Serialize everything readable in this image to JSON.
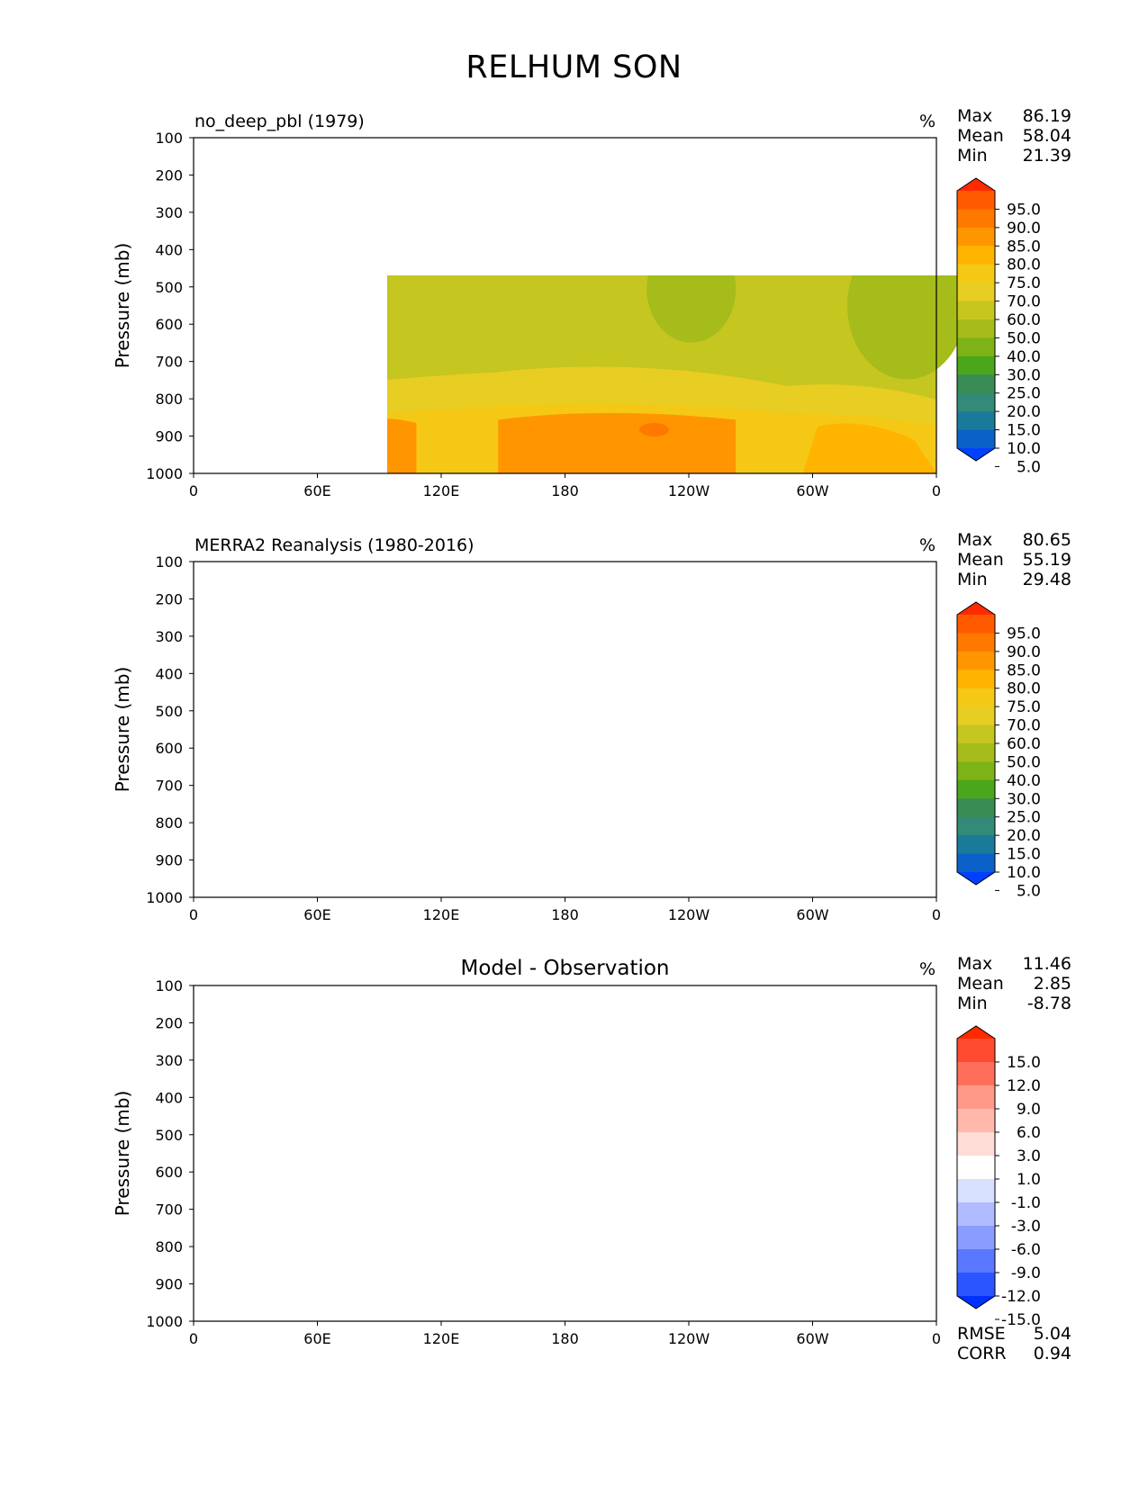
{
  "figure_title": "RELHUM SON",
  "chart_data": [
    {
      "type": "heatmap",
      "title": "no_deep_pbl (1979)",
      "units": "%",
      "xlabel": "",
      "ylabel": "Pressure (mb)",
      "xticks": [
        "0",
        "60E",
        "120E",
        "180",
        "120W",
        "60W",
        "0"
      ],
      "yticks": [
        "100",
        "200",
        "300",
        "400",
        "500",
        "600",
        "700",
        "800",
        "900",
        "1000"
      ],
      "ylim": [
        100,
        1000
      ],
      "xlim": [
        0,
        360
      ],
      "stats": [
        [
          "Max",
          "86.19"
        ],
        [
          "Mean",
          "58.04"
        ],
        [
          "Min",
          "21.39"
        ]
      ],
      "colorbar_levels": [
        "95.0",
        "90.0",
        "85.0",
        "80.0",
        "75.0",
        "70.0",
        "60.0",
        "50.0",
        "40.0",
        "30.0",
        "25.0",
        "20.0",
        "15.0",
        "10.0",
        "5.0"
      ],
      "colorbar_colors": [
        "#ff2a00",
        "#ff5a00",
        "#ff7800",
        "#ff9600",
        "#ffb400",
        "#f5c816",
        "#e8cd22",
        "#c5c620",
        "#a5bc1a",
        "#7eb318",
        "#4aa61a",
        "#3a8c55",
        "#348a78",
        "#1a7a9a",
        "#0a62c8",
        "#0040ff"
      ]
    },
    {
      "type": "heatmap",
      "title": "MERRA2 Reanalysis (1980-2016)",
      "units": "%",
      "xlabel": "",
      "ylabel": "Pressure (mb)",
      "xticks": [
        "0",
        "60E",
        "120E",
        "180",
        "120W",
        "60W",
        "0"
      ],
      "yticks": [
        "100",
        "200",
        "300",
        "400",
        "500",
        "600",
        "700",
        "800",
        "900",
        "1000"
      ],
      "ylim": [
        100,
        1000
      ],
      "xlim": [
        0,
        360
      ],
      "stats": [
        [
          "Max",
          "80.65"
        ],
        [
          "Mean",
          "55.19"
        ],
        [
          "Min",
          "29.48"
        ]
      ],
      "colorbar_levels": [
        "95.0",
        "90.0",
        "85.0",
        "80.0",
        "75.0",
        "70.0",
        "60.0",
        "50.0",
        "40.0",
        "30.0",
        "25.0",
        "20.0",
        "15.0",
        "10.0",
        "5.0"
      ],
      "colorbar_colors": [
        "#ff2a00",
        "#ff5a00",
        "#ff7800",
        "#ff9600",
        "#ffb400",
        "#f5c816",
        "#e8cd22",
        "#c5c620",
        "#a5bc1a",
        "#7eb318",
        "#4aa61a",
        "#3a8c55",
        "#348a78",
        "#1a7a9a",
        "#0a62c8",
        "#0040ff"
      ]
    },
    {
      "type": "heatmap",
      "title": "Model - Observation",
      "units": "%",
      "xlabel": "",
      "ylabel": "Pressure (mb)",
      "xticks": [
        "0",
        "60E",
        "120E",
        "180",
        "120W",
        "60W",
        "0"
      ],
      "yticks": [
        "100",
        "200",
        "300",
        "400",
        "500",
        "600",
        "700",
        "800",
        "900",
        "1000"
      ],
      "ylim": [
        100,
        1000
      ],
      "xlim": [
        0,
        360
      ],
      "stats": [
        [
          "Max",
          "11.46"
        ],
        [
          "Mean",
          "2.85"
        ],
        [
          "Min",
          "-8.78"
        ]
      ],
      "extra_stats": [
        [
          "RMSE",
          "5.04"
        ],
        [
          "CORR",
          "0.94"
        ]
      ],
      "colorbar_levels": [
        "15.0",
        "12.0",
        "9.0",
        "6.0",
        "3.0",
        "1.0",
        "-1.0",
        "-3.0",
        "-6.0",
        "-9.0",
        "-12.0",
        "-15.0"
      ],
      "colorbar_colors": [
        "#ff2a00",
        "#ff4a30",
        "#ff6e5a",
        "#ff9a88",
        "#ffb8aa",
        "#ffdcd6",
        "#ffffff",
        "#d8e0ff",
        "#b0bcff",
        "#8a9cff",
        "#5a78ff",
        "#2a55ff",
        "#0030ff"
      ]
    }
  ]
}
